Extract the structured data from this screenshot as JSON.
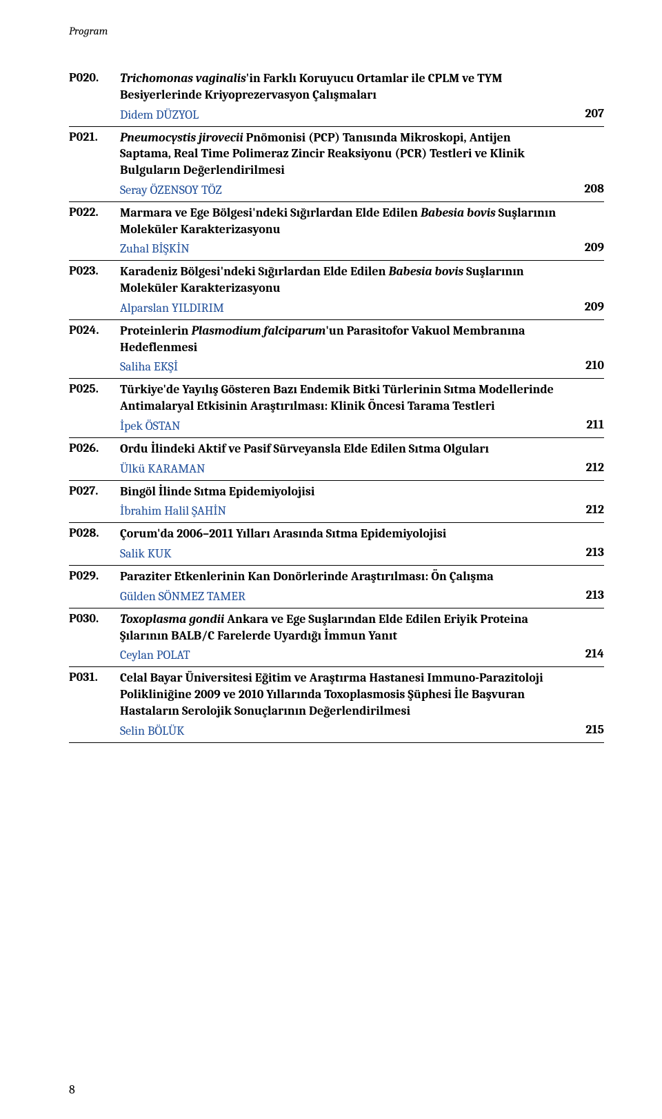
{
  "running_header": "Program",
  "footer_page_number": "8",
  "entries": [
    {
      "code": "P020.",
      "title_pre": "",
      "title_italic": "Trichomonas vaginalis",
      "title_post": "'in Farklı  Koruyucu Ortamlar ile CPLM ve TYM Besiyerlerinde Kriyoprezervasyon Çalışmaları",
      "author": "Didem DÜZYOL",
      "page": "207"
    },
    {
      "code": "P021.",
      "title_pre": "",
      "title_italic": "Pneumocystis jirovecii",
      "title_post": " Pnömonisi (PCP) Tanısında Mikroskopi, Antijen Saptama, Real Time Polimeraz Zincir Reaksiyonu (PCR) Testleri ve Klinik Bulguların Değerlendirilmesi",
      "author": "Seray ÖZENSOY TÖZ",
      "page": "208"
    },
    {
      "code": "P022.",
      "title_pre": "Marmara ve Ege Bölgesi'ndeki Sığırlardan Elde Edilen ",
      "title_italic": "Babesia bovis",
      "title_post": " Suşlarının Moleküler Karakterizasyonu",
      "author": "Zuhal BİŞKİN",
      "page": "209"
    },
    {
      "code": "P023.",
      "title_pre": "Karadeniz Bölgesi'ndeki Sığırlardan Elde Edilen ",
      "title_italic": "Babesia bovis",
      "title_post": " Suşlarının Moleküler Karakterizasyonu",
      "author": "Alparslan YILDIRIM",
      "page": "209"
    },
    {
      "code": "P024.",
      "title_pre": "Proteinlerin ",
      "title_italic": "Plasmodium falciparum",
      "title_post": "'un Parasitofor Vakuol Membranına Hedeflenmesi",
      "author": "Saliha EKŞİ",
      "page": "210"
    },
    {
      "code": "P025.",
      "title_pre": "Türkiye'de Yayılış Gösteren Bazı Endemik Bitki Türlerinin Sıtma Modellerinde Antimalaryal Etkisinin Araştırılması: Klinik Öncesi Tarama Testleri",
      "title_italic": "",
      "title_post": "",
      "author": "İpek ÖSTAN",
      "page": "211"
    },
    {
      "code": "P026.",
      "title_pre": "Ordu İlindeki Aktif ve Pasif Sürveyansla Elde Edilen Sıtma Olguları",
      "title_italic": "",
      "title_post": "",
      "author": "Ülkü KARAMAN",
      "page": "212"
    },
    {
      "code": "P027.",
      "title_pre": "Bingöl İlinde Sıtma Epidemiyolojisi",
      "title_italic": "",
      "title_post": "",
      "author": "İbrahim Halil ŞAHİN",
      "page": "212"
    },
    {
      "code": "P028.",
      "title_pre": "Çorum'da 2006–2011 Yılları Arasında Sıtma Epidemiyolojisi",
      "title_italic": "",
      "title_post": "",
      "author": "Salik KUK",
      "page": "213"
    },
    {
      "code": "P029.",
      "title_pre": "Paraziter Etkenlerinin Kan Donörlerinde Araştırılması: Ön Çalışma",
      "title_italic": "",
      "title_post": "",
      "author": "Gülden SÖNMEZ TAMER",
      "page": "213"
    },
    {
      "code": "P030.",
      "title_pre": "",
      "title_italic": "Toxoplasma gondii",
      "title_post": " Ankara ve Ege Suşlarından Elde Edilen Eriyik Proteina Şılarının BALB/C Farelerde Uyardığı İmmun Yanıt",
      "author": "Ceylan POLAT",
      "page": "214"
    },
    {
      "code": "P031.",
      "title_pre": "Celal Bayar Üniversitesi Eğitim ve Araştırma Hastanesi Immuno-Parazitoloji Polikliniğine 2009 ve 2010 Yıllarında Toxoplasmosis Şüphesi İle Başvuran Hastaların Serolojik Sonuçlarının Değerlendirilmesi",
      "title_italic": "",
      "title_post": "",
      "author": "Selin BÖLÜK",
      "page": "215"
    }
  ]
}
